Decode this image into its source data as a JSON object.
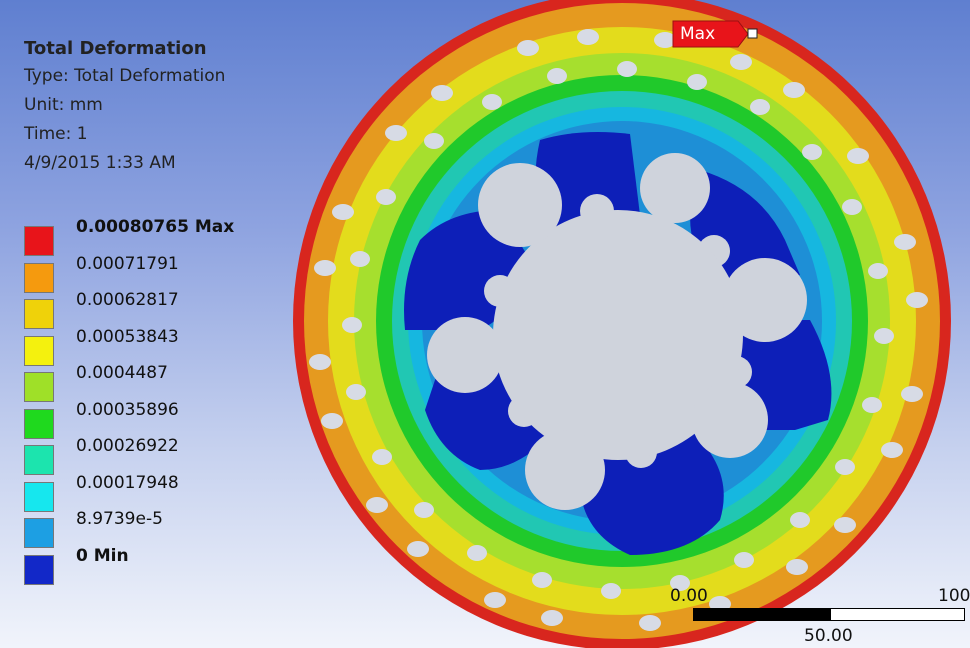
{
  "result": {
    "title": "Total Deformation",
    "type_line": "Type: Total Deformation",
    "unit_line": "Unit: mm",
    "time_line": "Time: 1",
    "date_line": "4/9/2015 1:33 AM"
  },
  "legend": [
    {
      "label": "0.00080765 Max",
      "color": "#e8141a",
      "bold": true
    },
    {
      "label": "0.00071791",
      "color": "#f59a0e",
      "bold": false
    },
    {
      "label": "0.00062817",
      "color": "#efd20a",
      "bold": false
    },
    {
      "label": "0.00053843",
      "color": "#f4f10e",
      "bold": false
    },
    {
      "label": "0.0004487",
      "color": "#9fe028",
      "bold": false
    },
    {
      "label": "0.00035896",
      "color": "#1fd91e",
      "bold": false
    },
    {
      "label": "0.00026922",
      "color": "#1ce4ae",
      "bold": false
    },
    {
      "label": "0.00017948",
      "color": "#16e7ee",
      "bold": false
    },
    {
      "label": "8.9739e-5",
      "color": "#1d9fe3",
      "bold": false
    },
    {
      "label": "0 Min",
      "color": "#1228c8",
      "bold": true
    }
  ],
  "probe": {
    "label": "Max"
  },
  "scale_bar": {
    "left": "0.00",
    "right": "100",
    "middle": "50.00"
  },
  "colors": {
    "outer_red": "#d8261e",
    "orange": "#e59a1f",
    "yellow": "#e3dc1c",
    "lime": "#a6df2e",
    "green": "#20c92b",
    "teal": "#21c7b3",
    "cyan": "#16b7e0",
    "light_blue": "#1e8fd6",
    "min_blue": "#0d1fb8",
    "hole_fill": "#b9c1cc",
    "center_fill": "#cfd3dc"
  }
}
